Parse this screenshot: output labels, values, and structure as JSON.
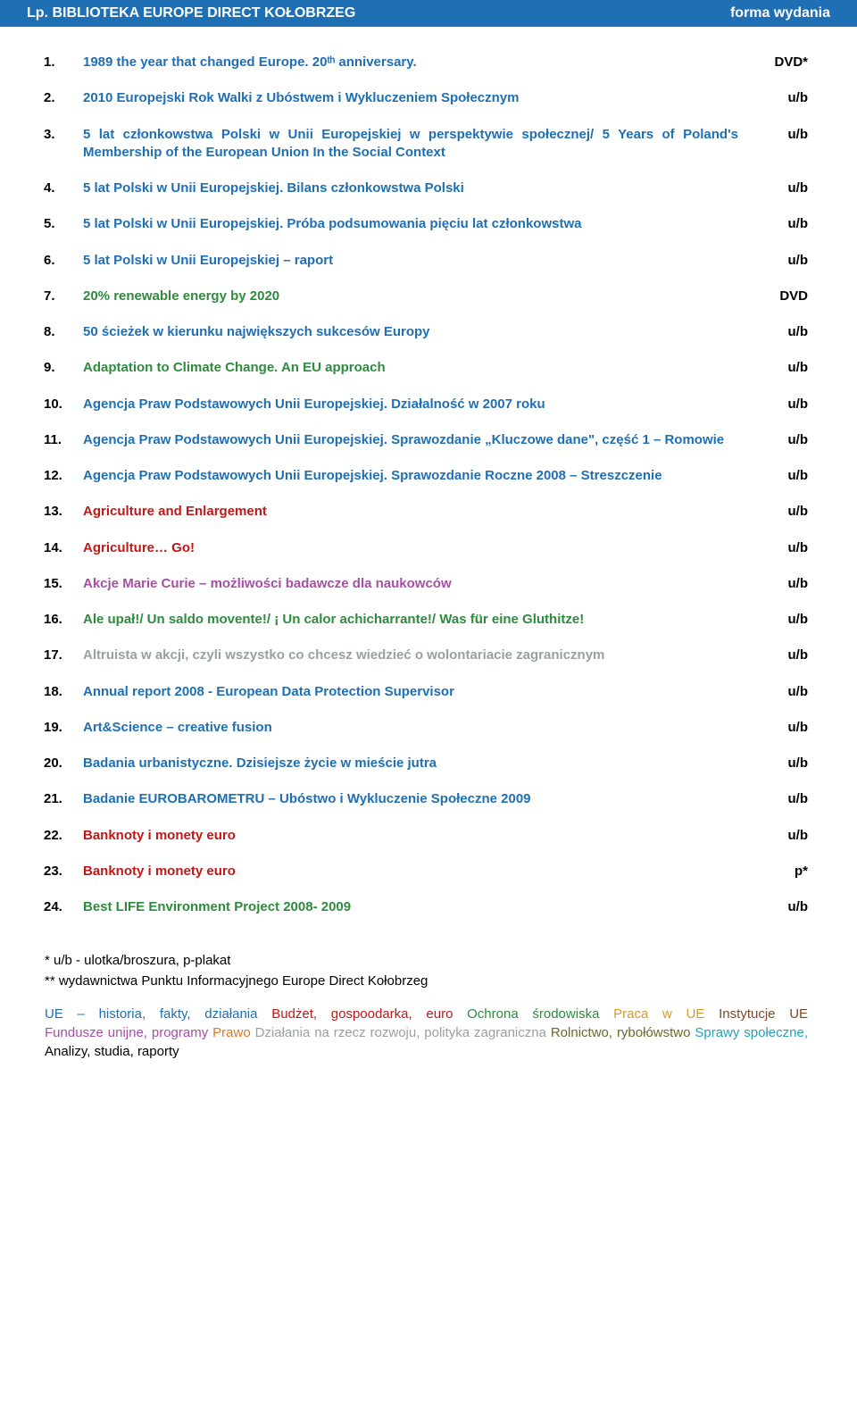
{
  "header": {
    "bg_color": "#1f6fb5",
    "text_color": "#ffffff",
    "left": "Lp.    BIBLIOTEKA EUROPE DIRECT KOŁOBRZEG",
    "right": "forma wydania"
  },
  "entries": [
    {
      "num": "1.",
      "title": "1989 the year that changed Europe. 20ᵗʰ anniversary.",
      "format": "DVD*",
      "color": "#1f6fb5"
    },
    {
      "num": "2.",
      "title": "2010 Europejski Rok Walki z Ubóstwem i Wykluczeniem Społecznym",
      "format": "u/b",
      "color": "#1f6fb5"
    },
    {
      "num": "3.",
      "title": "5 lat członkowstwa Polski w Unii Europejskiej w perspektywie społecznej/ 5 Years of Poland's Membership of the European Union In the Social Context",
      "format": "u/b",
      "color": "#1f6fb5"
    },
    {
      "num": "4.",
      "title": "5 lat Polski w Unii Europejskiej. Bilans członkowstwa Polski",
      "format": "u/b",
      "color": "#1f6fb5"
    },
    {
      "num": "5.",
      "title": "5 lat Polski w Unii Europejskiej. Próba podsumowania pięciu lat członkowstwa",
      "format": "u/b",
      "color": "#1f6fb5"
    },
    {
      "num": "6.",
      "title": "5 lat Polski w Unii Europejskiej – raport",
      "format": "u/b",
      "color": "#1f6fb5"
    },
    {
      "num": "7.",
      "title": "20% renewable energy by 2020",
      "format": "DVD",
      "color": "#2e8b3d"
    },
    {
      "num": "8.",
      "title": "50 ścieżek w kierunku największych sukcesów Europy",
      "format": "u/b",
      "color": "#1f6fb5"
    },
    {
      "num": "9.",
      "title": "Adaptation to Climate Change. An EU approach",
      "format": "u/b",
      "color": "#2e8b3d"
    },
    {
      "num": "10.",
      "title": "Agencja Praw Podstawowych Unii Europejskiej. Działalność w 2007 roku",
      "format": "u/b",
      "color": "#1f6fb5"
    },
    {
      "num": "11.",
      "title": "Agencja Praw Podstawowych Unii Europejskiej. Sprawozdanie „Kluczowe dane\", część 1 – Romowie",
      "format": "u/b",
      "color": "#1f6fb5"
    },
    {
      "num": "12.",
      "title": "Agencja Praw Podstawowych Unii Europejskiej. Sprawozdanie Roczne 2008 – Streszczenie",
      "format": "u/b",
      "color": "#1f6fb5"
    },
    {
      "num": "13.",
      "title": "Agriculture and Enlargement",
      "format": "u/b",
      "color": "#c01818"
    },
    {
      "num": "14.",
      "title": "Agriculture… Go!",
      "format": "u/b",
      "color": "#c01818"
    },
    {
      "num": "15.",
      "title": "Akcje Marie Curie – możliwości badawcze dla naukowców",
      "format": "u/b",
      "color": "#a64fa6"
    },
    {
      "num": "16.",
      "title": "Ale upał!/ Un saldo movente!/ ¡ Un calor achicharrante!/ Was für eine Gluthitze!",
      "format": "u/b",
      "color": "#2e8b3d"
    },
    {
      "num": "17.",
      "title": "Altruista w akcji, czyli wszystko co chcesz wiedzieć o wolontariacie zagranicznym",
      "format": "u/b",
      "color": "#9aa0a0"
    },
    {
      "num": "18.",
      "title": "Annual report 2008 - European Data Protection Supervisor",
      "format": "u/b",
      "color": "#1f6fb5"
    },
    {
      "num": "19.",
      "title": "Art&Science – creative fusion",
      "format": "u/b",
      "color": "#1f6fb5"
    },
    {
      "num": "20.",
      "title": "Badania urbanistyczne. Dzisiejsze życie w mieście jutra",
      "format": "u/b",
      "color": "#1f6fb5"
    },
    {
      "num": "21.",
      "title": "Badanie EUROBAROMETRU – Ubóstwo i Wykluczenie Społeczne 2009",
      "format": "u/b",
      "color": "#1f6fb5"
    },
    {
      "num": "22.",
      "title": "Banknoty i monety euro",
      "format": "u/b",
      "color": "#c01818"
    },
    {
      "num": "23.",
      "title": "Banknoty i monety euro",
      "format": "p*",
      "color": "#c01818"
    },
    {
      "num": "24.",
      "title": "Best LIFE Environment Project 2008- 2009",
      "format": "u/b",
      "color": "#2e8b3d"
    }
  ],
  "footnotes": [
    "* u/b - ulotka/broszura, p-plakat",
    "** wydawnictwa Punktu Informacyjnego Europe Direct Kołobrzeg"
  ],
  "legend": [
    {
      "text": "UE – historia, fakty, działania",
      "color": "#1f6fb5"
    },
    {
      "text": "Budżet, gospoodarka, euro",
      "color": "#c01818"
    },
    {
      "text": "Ochrona środowiska",
      "color": "#2e8b3d"
    },
    {
      "text": "Praca w UE",
      "color": "#d69a2d"
    },
    {
      "text": "Instytucje UE",
      "color": "#7a4a2a"
    },
    {
      "text": "Fundusze unijne, programy",
      "color": "#a64fa6"
    },
    {
      "text": "Prawo",
      "color": "#d67a2d"
    },
    {
      "text": "Działania na rzecz rozwoju, polityka zagraniczna",
      "color": "#9aa0a0"
    },
    {
      "text": "Rolnictwo, rybołówstwo",
      "color": "#6a6a28"
    },
    {
      "text": "Sprawy społeczne,",
      "color": "#2aa0b5"
    },
    {
      "text": "Analizy, studia, raporty",
      "color": "#000000"
    }
  ],
  "colors": {
    "header_bg": "#1f6fb5",
    "num_color": "#000000",
    "format_color": "#000000"
  }
}
